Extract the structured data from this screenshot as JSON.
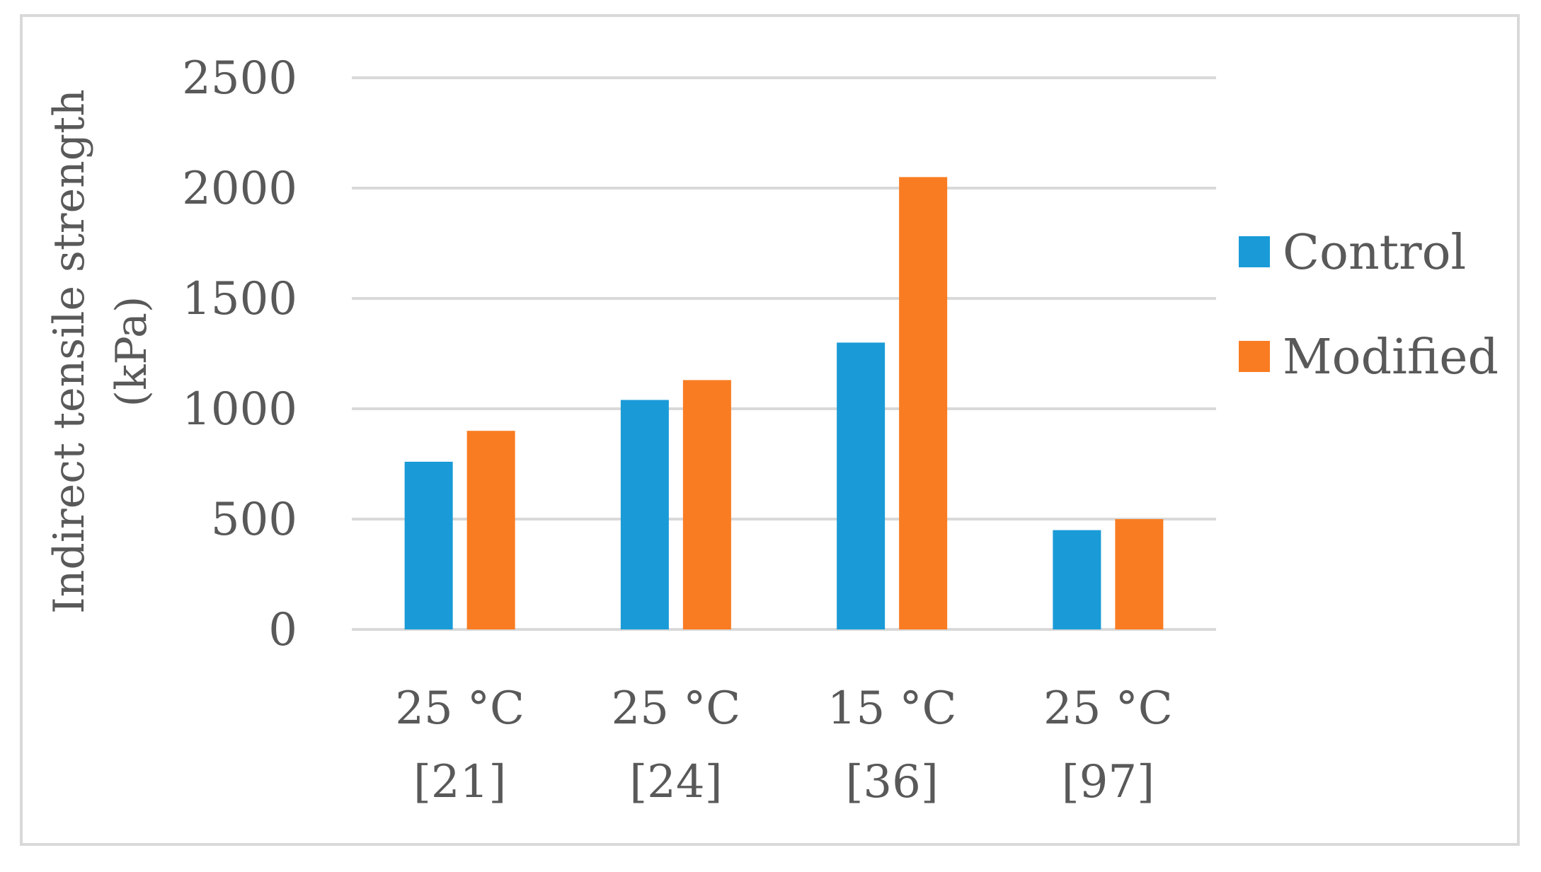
{
  "chart_data": {
    "type": "bar",
    "categories": [
      {
        "line1": "25 °C",
        "line2": "[21]"
      },
      {
        "line1": "25 °C",
        "line2": "[24]"
      },
      {
        "line1": "15 °C",
        "line2": "[36]"
      },
      {
        "line1": "25 °C",
        "line2": "[97]"
      }
    ],
    "series": [
      {
        "name": "Control",
        "color": "#1a9bd7",
        "values": [
          760,
          1040,
          1300,
          450
        ]
      },
      {
        "name": "Modified",
        "color": "#f97c22",
        "values": [
          900,
          1130,
          2050,
          500
        ]
      }
    ],
    "ylabel_line1": "Indirect tensile strength",
    "ylabel_line2": "(kPa)",
    "ylim": [
      0,
      2500
    ],
    "yticks": [
      "0",
      "500",
      "1000",
      "1500",
      "2000",
      "2500"
    ],
    "grid": true,
    "legend_position": "right"
  }
}
